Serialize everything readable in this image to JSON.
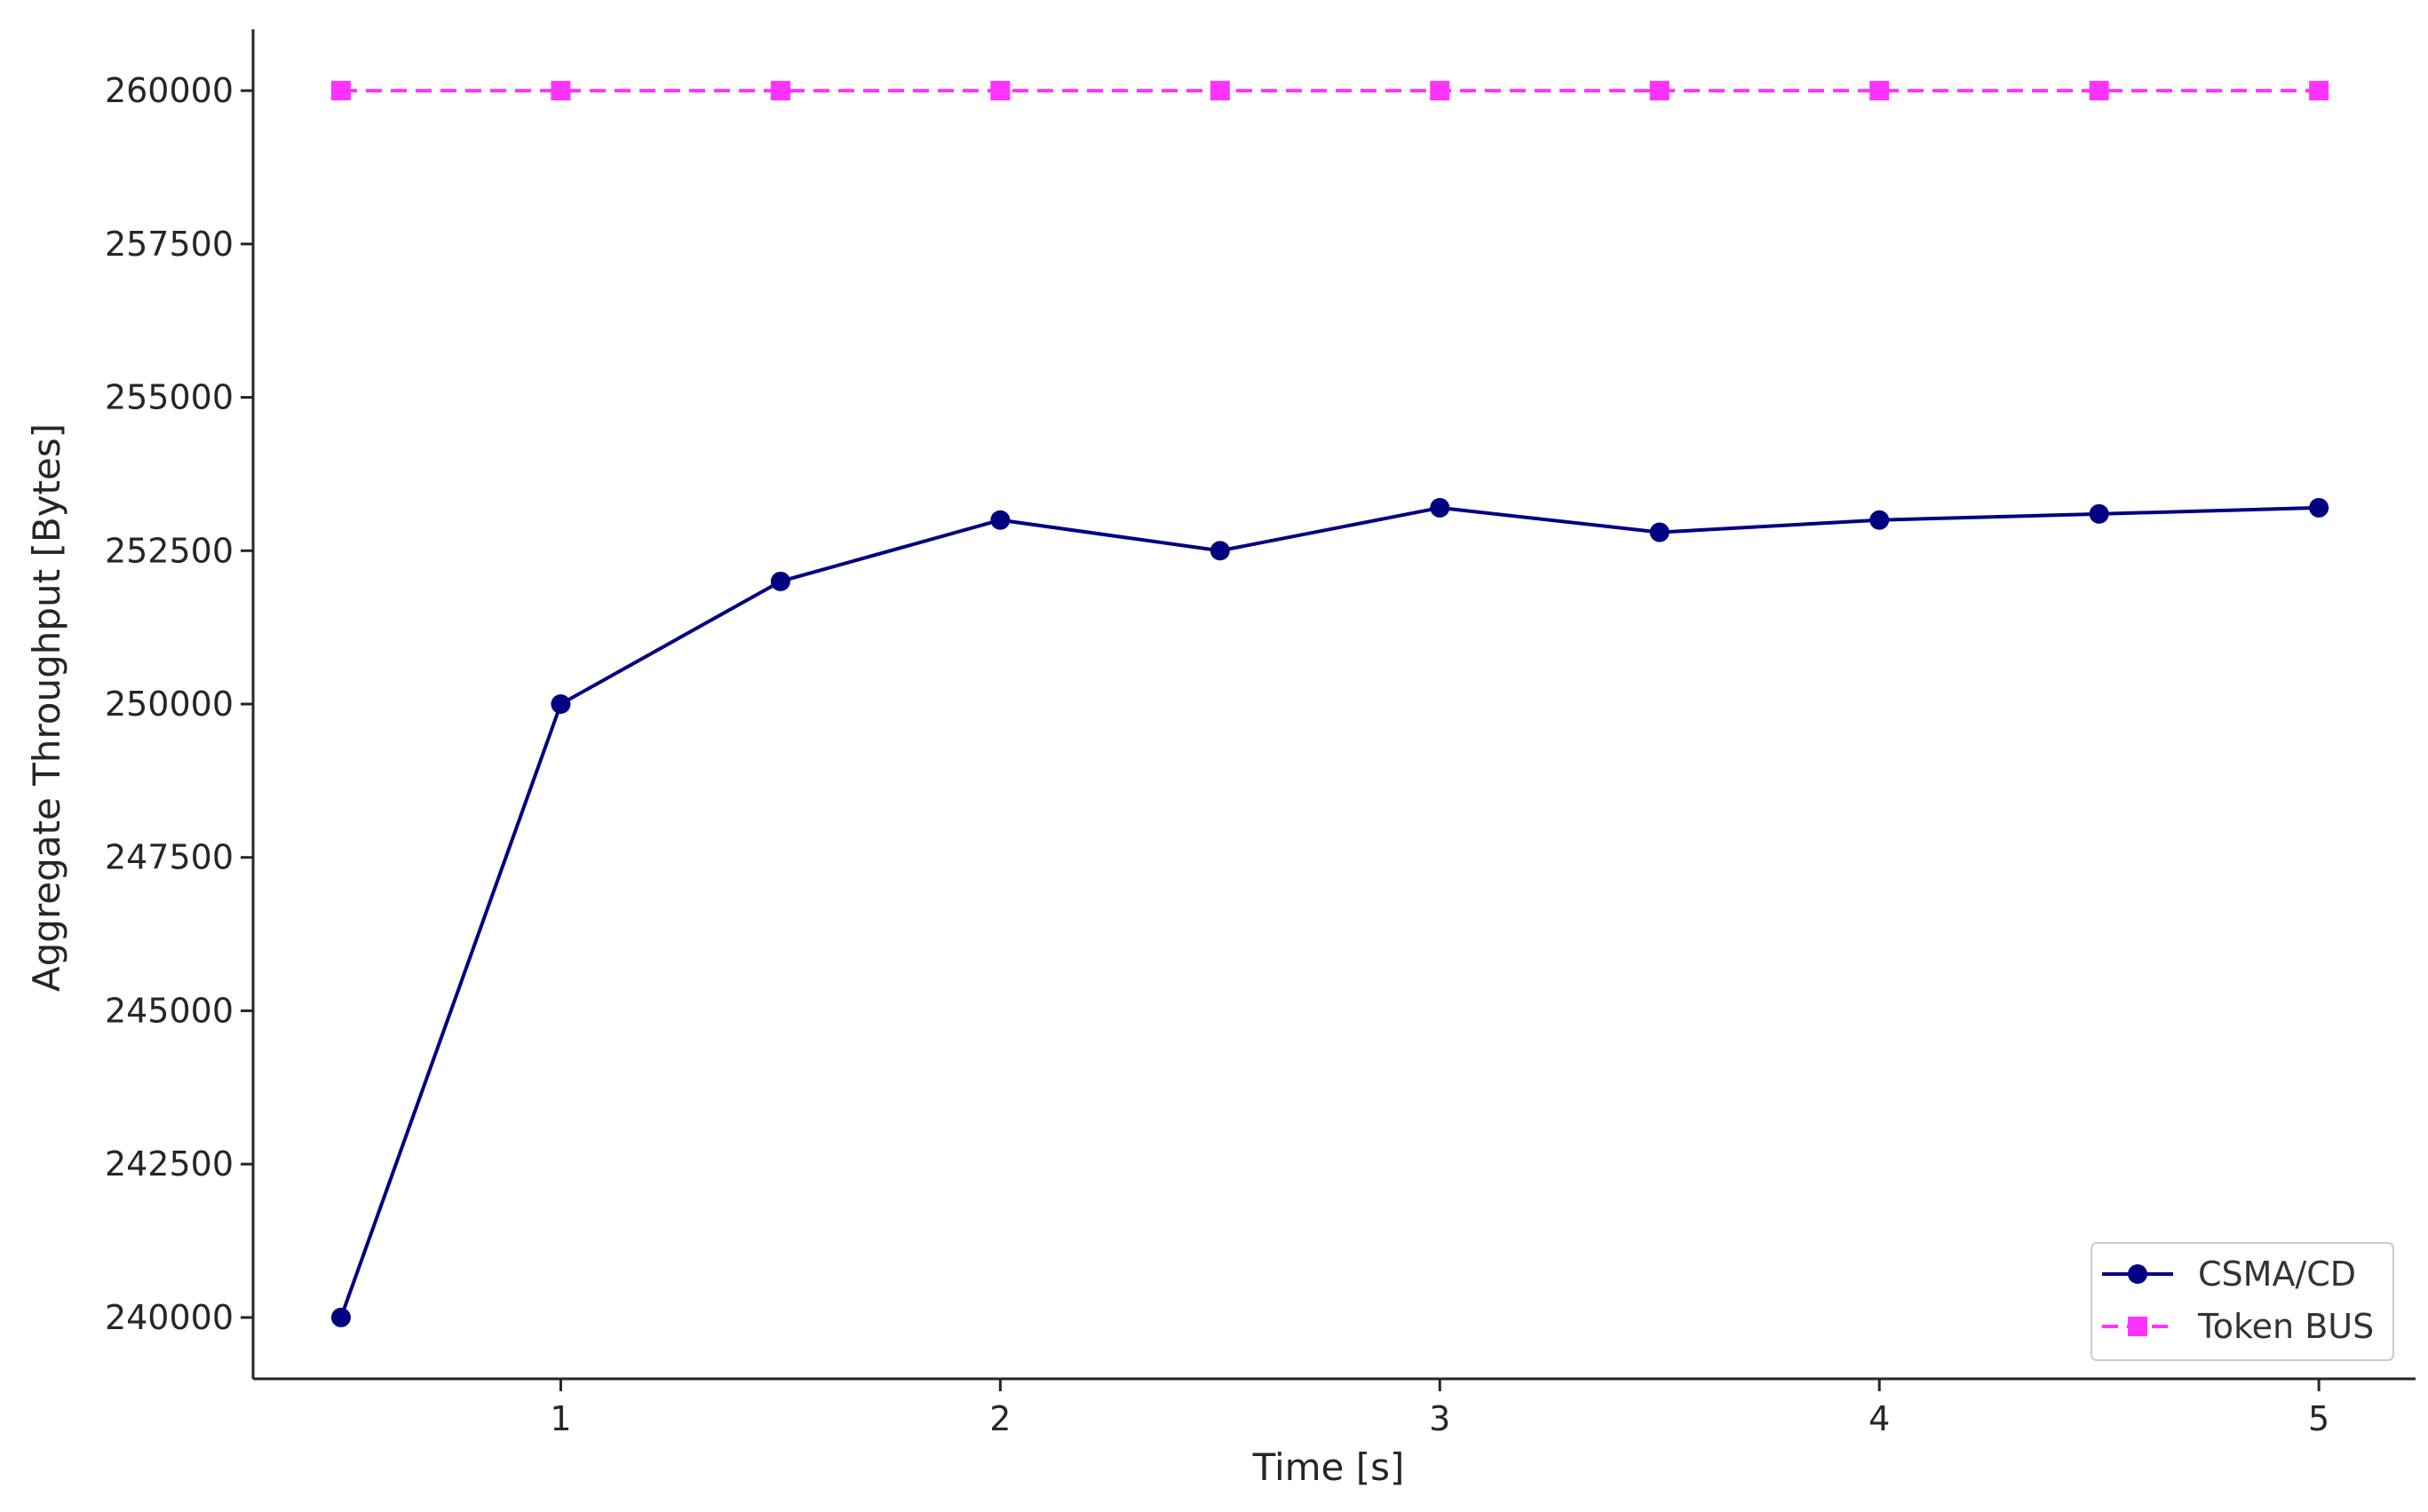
{
  "chart_data": {
    "type": "line",
    "title": "",
    "xlabel": "Time [s]",
    "ylabel": "Aggregate Throughput [Bytes]",
    "xlim": [
      0.3,
      5.22
    ],
    "ylim": [
      239000,
      261000
    ],
    "xticks": [
      1,
      2,
      3,
      4,
      5
    ],
    "xtick_labels": [
      "1",
      "2",
      "3",
      "4",
      "5"
    ],
    "yticks": [
      240000,
      242500,
      245000,
      247500,
      250000,
      252500,
      255000,
      257500,
      260000
    ],
    "ytick_labels": [
      "240000",
      "242500",
      "245000",
      "247500",
      "250000",
      "252500",
      "255000",
      "257500",
      "260000"
    ],
    "grid": false,
    "legend_position": "bottom-right",
    "x": [
      0.5,
      1.0,
      1.5,
      2.0,
      2.5,
      3.0,
      3.5,
      4.0,
      4.5,
      5.0
    ],
    "series": [
      {
        "name": "CSMA/CD",
        "values": [
          240000,
          250000,
          252000,
          253000,
          252500,
          253200,
          252800,
          253000,
          253100,
          253200
        ],
        "color": "#000080",
        "line_style": "solid",
        "marker": "circle"
      },
      {
        "name": "Token BUS",
        "values": [
          260000,
          260000,
          260000,
          260000,
          260000,
          260000,
          260000,
          260000,
          260000,
          260000
        ],
        "color": "#ff33ff",
        "line_style": "dashed",
        "marker": "square"
      }
    ]
  }
}
